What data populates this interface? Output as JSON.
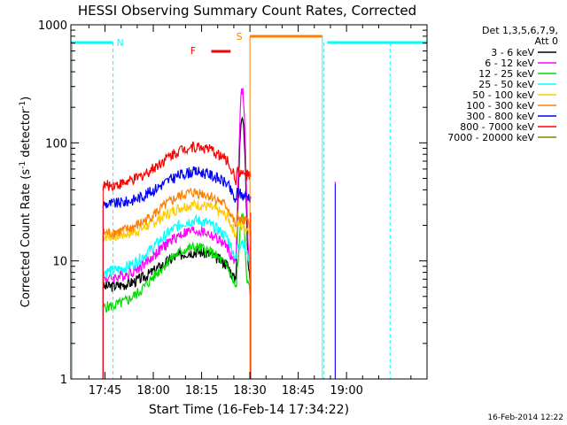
{
  "chart_data": {
    "type": "line",
    "title": "HESSI Observing Summary Count Rates, Corrected",
    "xlabel": "Start Time (16-Feb-14 17:34:22)",
    "ylabel_main": "Corrected Count Rate (s",
    "ylabel_sup1": "-1",
    "ylabel_mid": " detector",
    "ylabel_sup2": "-1",
    "ylabel_end": ")",
    "y_scale": "log",
    "ylim": [
      1,
      1000
    ],
    "xlim_minutes": [
      34.4,
      145.0
    ],
    "x_ticks": [
      {
        "label": "17:45",
        "minute": 45
      },
      {
        "label": "18:00",
        "minute": 60
      },
      {
        "label": "18:15",
        "minute": 75
      },
      {
        "label": "18:30",
        "minute": 90
      },
      {
        "label": "18:45",
        "minute": 105
      },
      {
        "label": "19:00",
        "minute": 120
      }
    ],
    "y_ticks": [
      {
        "label": "1",
        "value": 1
      },
      {
        "label": "10",
        "value": 10
      },
      {
        "label": "100",
        "value": 100
      },
      {
        "label": "1000",
        "value": 1000
      }
    ],
    "legend_header": [
      "Det 1,3,5,6,7,9,",
      "Att 0"
    ],
    "legend_position": "right",
    "series": [
      {
        "name": "3 - 6 keV",
        "color": "#000000",
        "base": 6,
        "peak": 12,
        "flare": 180
      },
      {
        "name": "6 - 12 keV",
        "color": "#ff00ff",
        "base": 7,
        "peak": 18,
        "flare": 280
      },
      {
        "name": "12 - 25 keV",
        "color": "#00dd00",
        "base": 4,
        "peak": 13,
        "flare": 25
      },
      {
        "name": "25 - 50 keV",
        "color": "#00ffff",
        "base": 8,
        "peak": 22,
        "flare": 15
      },
      {
        "name": "50 - 100 keV",
        "color": "#ffcc00",
        "base": 16,
        "peak": 30,
        "flare": 18
      },
      {
        "name": "100 - 300 keV",
        "color": "#ff8000",
        "base": 17,
        "peak": 38,
        "flare": 19
      },
      {
        "name": "300 - 800 keV",
        "color": "#0000ff",
        "base": 30,
        "peak": 57,
        "flare": 32
      },
      {
        "name": "800 - 7000 keV",
        "color": "#ff0000",
        "base": 43,
        "peak": 93,
        "flare": 47
      },
      {
        "name": "7000 - 20000 keV",
        "color": "#808000",
        "base": 0,
        "peak": 0,
        "flare": 0
      }
    ],
    "annotations": [
      {
        "label": "N",
        "color": "#00ffff",
        "minute": 47.5
      },
      {
        "label": "F",
        "color": "#ff0000",
        "minute": 74
      },
      {
        "label": "S",
        "color": "#ff8000",
        "minute": 90
      }
    ],
    "night_intervals_minutes": [
      [
        34.4,
        47.5
      ],
      [
        114,
        145
      ]
    ],
    "saa_interval_minutes": [
      90,
      112.5
    ],
    "flare_interval_minutes": [
      78,
      84
    ],
    "timestamp": "16-Feb-2014 12:22"
  }
}
